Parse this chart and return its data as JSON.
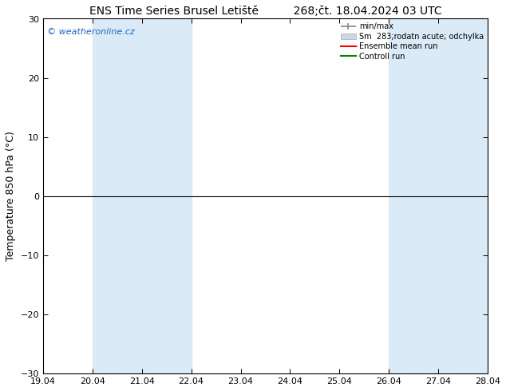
{
  "title_left": "ENS Time Series Brusel Letiště",
  "title_right": "268;čt. 18.04.2024 03 UTC",
  "ylabel": "Temperature 850 hPa (°C)",
  "watermark": "© weatheronline.cz",
  "ylim": [
    -30,
    30
  ],
  "yticks": [
    -30,
    -20,
    -10,
    0,
    10,
    20,
    30
  ],
  "x_tick_labels": [
    "19.04",
    "20.04",
    "21.04",
    "22.04",
    "23.04",
    "24.04",
    "25.04",
    "26.04",
    "27.04",
    "28.04"
  ],
  "x_tick_positions": [
    0,
    1,
    2,
    3,
    4,
    5,
    6,
    7,
    8,
    9
  ],
  "shade_bands": [
    {
      "x_start": 1,
      "x_end": 3,
      "color": "#daeaf7"
    },
    {
      "x_start": 7,
      "x_end": 9,
      "color": "#daeaf7"
    }
  ],
  "hline_y": 0,
  "hline_color": "#000000",
  "bg_color": "#ffffff",
  "plot_bg_color": "#ffffff",
  "border_color": "#000000",
  "title_fontsize": 10,
  "axis_label_fontsize": 9,
  "tick_label_fontsize": 8,
  "watermark_fontsize": 8,
  "watermark_color": "#1a66cc",
  "legend_label_min_max": "min/max",
  "legend_label_sm": "Sm  283;rodatn acute; odchylka",
  "legend_label_ensemble": "Ensemble mean run",
  "legend_label_control": "Controll run",
  "legend_color_min_max": "#888888",
  "legend_color_sm": "#c8d8e8",
  "legend_color_ensemble": "#ff0000",
  "legend_color_control": "#008000"
}
